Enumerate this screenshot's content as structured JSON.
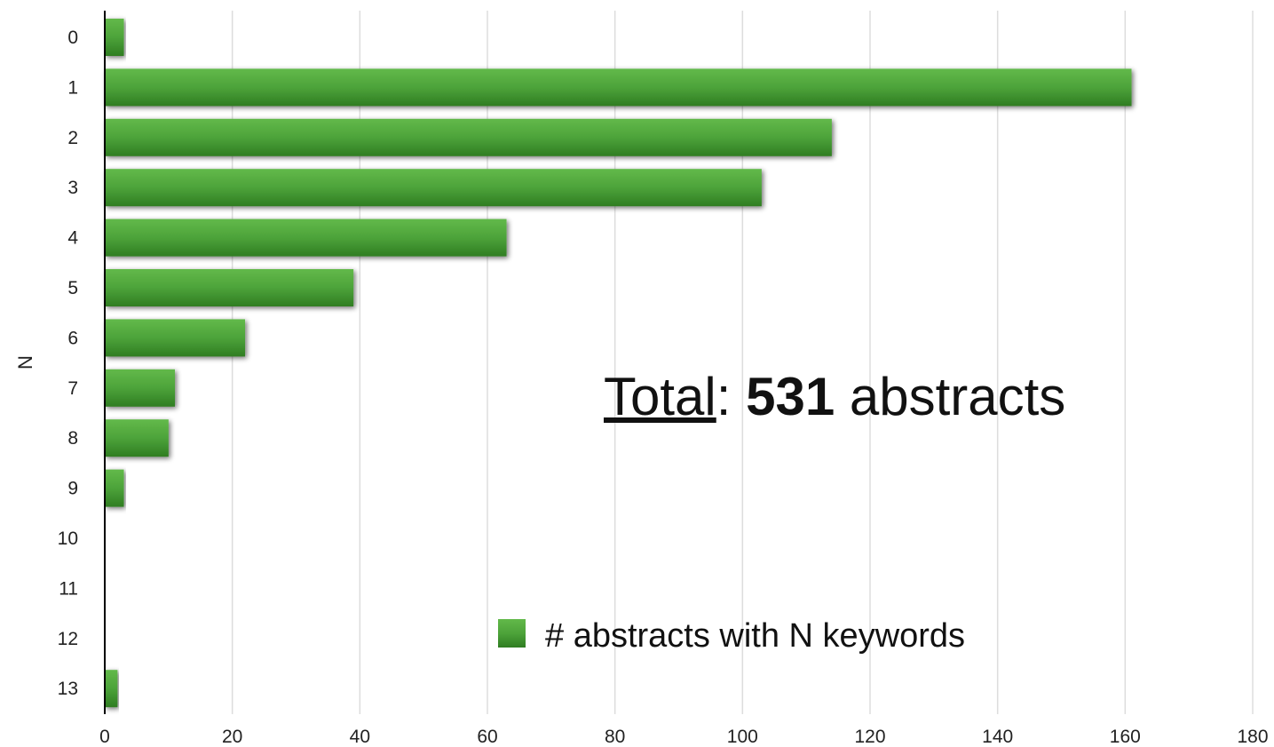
{
  "chart_data": {
    "type": "bar",
    "orientation": "horizontal",
    "categories": [
      "0",
      "1",
      "2",
      "3",
      "4",
      "5",
      "6",
      "7",
      "8",
      "9",
      "10",
      "11",
      "12",
      "13"
    ],
    "series": [
      {
        "name": "# abstracts with N keywords",
        "values": [
          3,
          161,
          114,
          103,
          63,
          39,
          22,
          11,
          10,
          3,
          0,
          0,
          0,
          2
        ]
      }
    ],
    "xlim": [
      0,
      180
    ],
    "xticks": [
      "0",
      "20",
      "40",
      "60",
      "80",
      "100",
      "120",
      "140",
      "160",
      "180"
    ],
    "ylabel": "N",
    "xlabel": "",
    "grid": "vertical",
    "legend_position": "bottom-center",
    "annotation": {
      "underlined": "Total",
      "separator": ": ",
      "bold": "531",
      "rest": " abstracts"
    },
    "colors": {
      "bar_light": "#62b94a",
      "bar_dark": "#2f7d22",
      "grid": "#dddddd",
      "axis": "#000000"
    }
  }
}
